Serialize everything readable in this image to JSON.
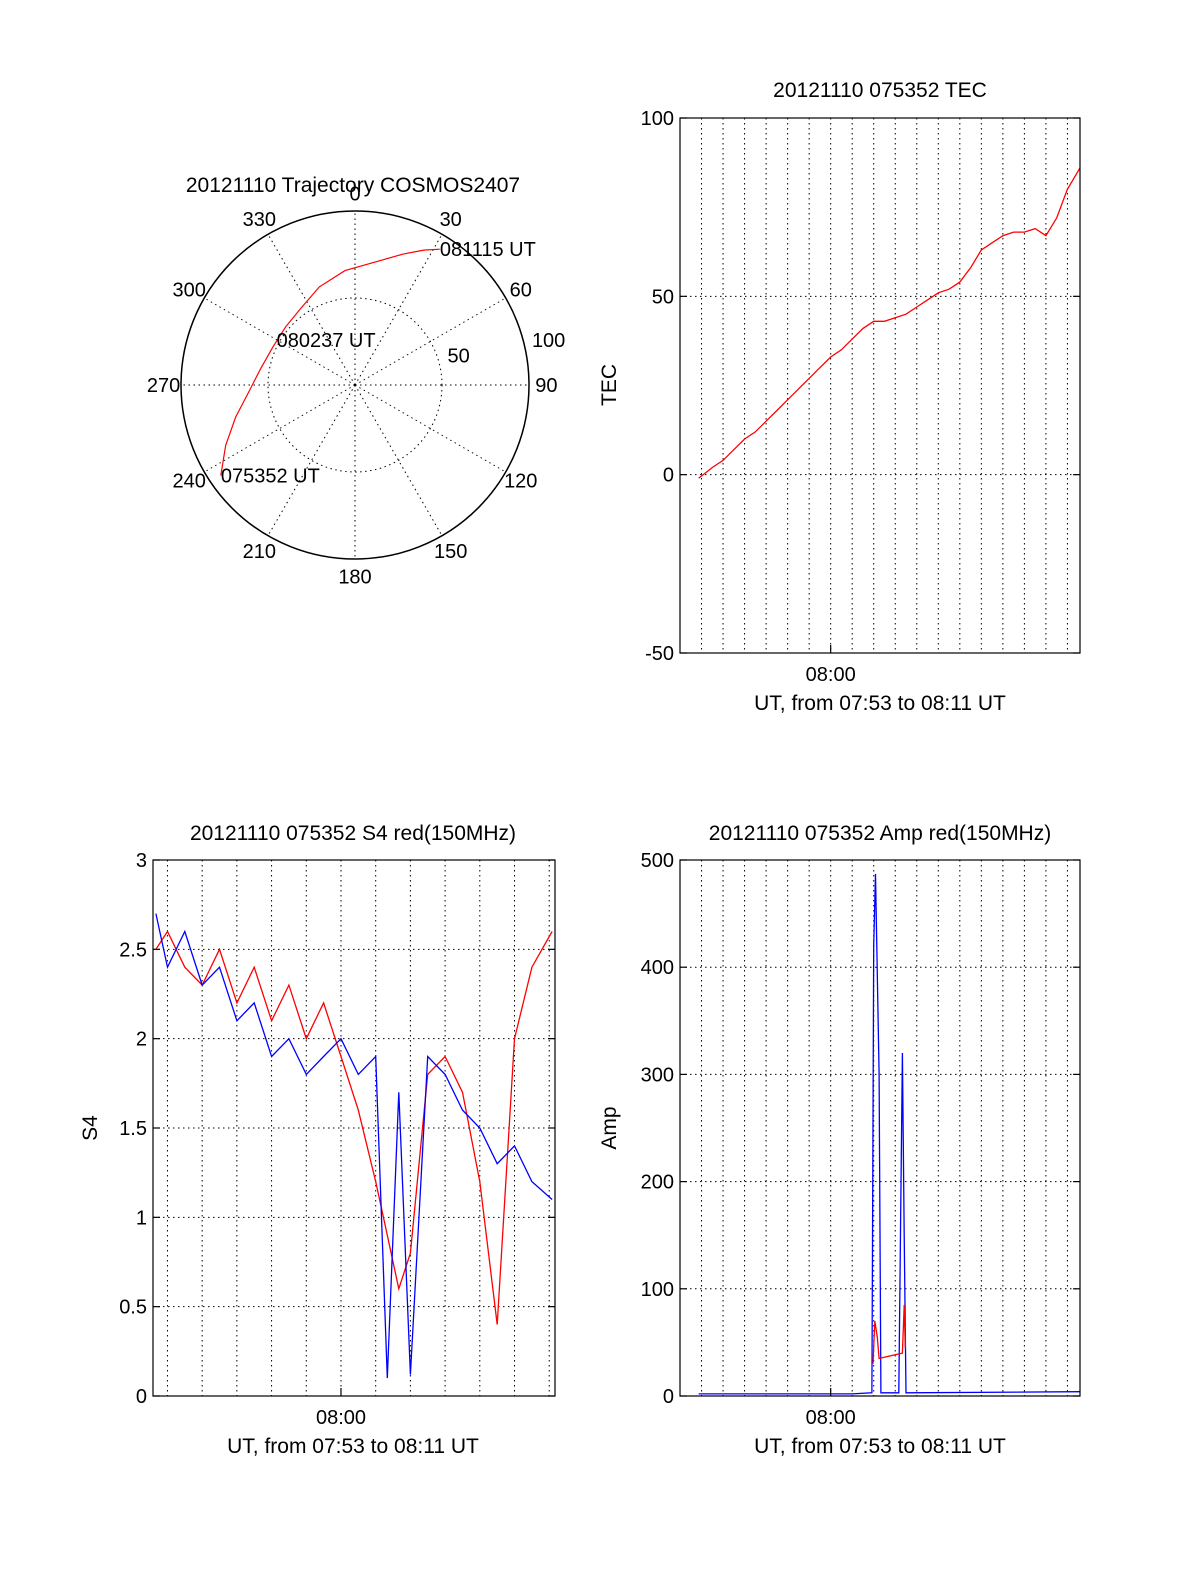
{
  "colors": {
    "red": "#ff0000",
    "blue": "#0000ff",
    "axis": "#000000",
    "background": "#ffffff"
  },
  "chart_data": [
    {
      "id": "trajectory",
      "type": "polar",
      "title": "20121110 Trajectory COSMOS2407",
      "angle_labels": [
        "0",
        "30",
        "60",
        "90",
        "120",
        "150",
        "180",
        "210",
        "240",
        "270",
        "300",
        "330"
      ],
      "angles_deg": [
        0,
        30,
        60,
        90,
        120,
        150,
        180,
        210,
        240,
        270,
        300,
        330
      ],
      "radial_labels": [
        "50",
        "100"
      ],
      "radial_values": [
        50,
        100
      ],
      "rlim": [
        0,
        100
      ],
      "grid": true,
      "series": [
        {
          "color": "red",
          "points": [
            [
              236,
              93
            ],
            [
              245,
              82
            ],
            [
              255,
              71
            ],
            [
              265,
              62
            ],
            [
              280,
              55
            ],
            [
              295,
              52
            ],
            [
              310,
              52
            ],
            [
              325,
              54
            ],
            [
              340,
              60
            ],
            [
              355,
              66
            ],
            [
              10,
              72
            ],
            [
              20,
              80
            ],
            [
              27,
              87
            ],
            [
              32,
              92
            ]
          ]
        }
      ],
      "annotations": [
        {
          "text": "081115 UT",
          "az": 32,
          "r": 92
        },
        {
          "text": "080237 UT",
          "az": 300,
          "r": 52
        },
        {
          "text": "075352 UT",
          "az": 236,
          "r": 93
        }
      ]
    },
    {
      "id": "tec",
      "type": "line",
      "title": "20121110 075352 TEC",
      "xlabel": "UT, from 07:53 to 08:11 UT",
      "ylabel": "TEC",
      "xlim": [
        "07:53:00",
        "08:11:35"
      ],
      "ylim": [
        -50,
        100
      ],
      "yticks": [
        -50,
        0,
        50,
        100
      ],
      "ytick_labels": [
        "-50",
        "0",
        "50",
        "100"
      ],
      "xticks": [
        "08:00"
      ],
      "x_minor_grid_minutes": 1,
      "grid": true,
      "series": [
        {
          "color": "red",
          "x": [
            "07:53:52",
            "07:54:30",
            "07:55:00",
            "07:55:30",
            "07:56:00",
            "07:56:30",
            "07:57:00",
            "07:57:30",
            "07:58:00",
            "07:58:30",
            "07:59:00",
            "07:59:30",
            "08:00:00",
            "08:00:30",
            "08:01:00",
            "08:01:30",
            "08:02:00",
            "08:02:30",
            "08:03:00",
            "08:03:30",
            "08:04:00",
            "08:04:30",
            "08:05:00",
            "08:05:30",
            "08:06:00",
            "08:06:30",
            "08:07:00",
            "08:07:30",
            "08:08:00",
            "08:08:30",
            "08:09:00",
            "08:09:30",
            "08:10:00",
            "08:10:30",
            "08:11:00",
            "08:11:35"
          ],
          "y": [
            -1,
            2,
            4,
            7,
            10,
            12,
            15,
            18,
            21,
            24,
            27,
            30,
            33,
            35,
            38,
            41,
            43,
            43,
            44,
            45,
            47,
            49,
            51,
            52,
            54,
            58,
            63,
            65,
            67,
            68,
            68,
            69,
            67,
            72,
            80,
            86
          ]
        }
      ]
    },
    {
      "id": "s4",
      "type": "line",
      "title": "20121110 075352 S4 red(150MHz)",
      "xlabel": "UT, from 07:53 to 08:11 UT",
      "ylabel": "S4",
      "xlim": [
        "07:54:35",
        "08:06:10"
      ],
      "ylim": [
        0,
        3
      ],
      "yticks": [
        0,
        0.5,
        1,
        1.5,
        2,
        2.5,
        3
      ],
      "ytick_labels": [
        "0",
        "0.5",
        "1",
        "1.5",
        "2",
        "2.5",
        "3"
      ],
      "xticks": [
        "08:00"
      ],
      "x_minor_grid_minutes": 1,
      "grid": true,
      "series": [
        {
          "color": "red",
          "x": [
            "07:54:40",
            "07:55:00",
            "07:55:30",
            "07:56:00",
            "07:56:30",
            "07:57:00",
            "07:57:30",
            "07:58:00",
            "07:58:30",
            "07:59:00",
            "07:59:30",
            "08:00:00",
            "08:00:30",
            "08:01:00",
            "08:01:20",
            "08:01:40",
            "08:02:00",
            "08:02:30",
            "08:03:00",
            "08:03:30",
            "08:04:00",
            "08:04:30",
            "08:05:00",
            "08:05:30",
            "08:06:05"
          ],
          "y": [
            2.5,
            2.6,
            2.4,
            2.3,
            2.5,
            2.2,
            2.4,
            2.1,
            2.3,
            2.0,
            2.2,
            1.9,
            1.6,
            1.2,
            0.9,
            0.6,
            0.8,
            1.8,
            1.9,
            1.7,
            1.2,
            0.4,
            2.0,
            2.4,
            2.6
          ]
        },
        {
          "color": "blue",
          "x": [
            "07:54:40",
            "07:55:00",
            "07:55:30",
            "07:56:00",
            "07:56:30",
            "07:57:00",
            "07:57:30",
            "07:58:00",
            "07:58:30",
            "07:59:00",
            "07:59:30",
            "08:00:00",
            "08:00:30",
            "08:01:00",
            "08:01:20",
            "08:01:40",
            "08:02:00",
            "08:02:30",
            "08:03:00",
            "08:03:30",
            "08:04:00",
            "08:04:30",
            "08:05:00",
            "08:05:30",
            "08:06:05"
          ],
          "y": [
            2.7,
            2.4,
            2.6,
            2.3,
            2.4,
            2.1,
            2.2,
            1.9,
            2.0,
            1.8,
            1.9,
            2.0,
            1.8,
            1.9,
            0.1,
            1.7,
            0.12,
            1.9,
            1.8,
            1.6,
            1.5,
            1.3,
            1.4,
            1.2,
            1.1
          ]
        }
      ]
    },
    {
      "id": "amp",
      "type": "line",
      "title": "20121110 075352 Amp red(150MHz)",
      "xlabel": "UT, from 07:53 to 08:11 UT",
      "ylabel": "Amp",
      "xlim": [
        "07:53:00",
        "08:11:35"
      ],
      "ylim": [
        0,
        500
      ],
      "yticks": [
        0,
        100,
        200,
        300,
        400,
        500
      ],
      "ytick_labels": [
        "0",
        "100",
        "200",
        "300",
        "400",
        "500"
      ],
      "xticks": [
        "08:00"
      ],
      "x_minor_grid_minutes": 1,
      "grid": true,
      "series": [
        {
          "color": "blue",
          "x": [
            "07:53:52",
            "08:01:00",
            "08:01:55",
            "08:02:00",
            "08:02:05",
            "08:02:15",
            "08:02:20",
            "08:03:10",
            "08:03:20",
            "08:03:25",
            "08:03:30",
            "08:11:35"
          ],
          "y": [
            2,
            2,
            3,
            420,
            487,
            300,
            3,
            3,
            320,
            150,
            3,
            4
          ]
        },
        {
          "color": "red",
          "x": [
            "08:01:58",
            "08:02:03",
            "08:02:10",
            "08:02:15",
            "08:03:20",
            "08:03:25",
            "08:03:28"
          ],
          "y": [
            30,
            70,
            55,
            35,
            40,
            85,
            45
          ]
        }
      ]
    }
  ]
}
